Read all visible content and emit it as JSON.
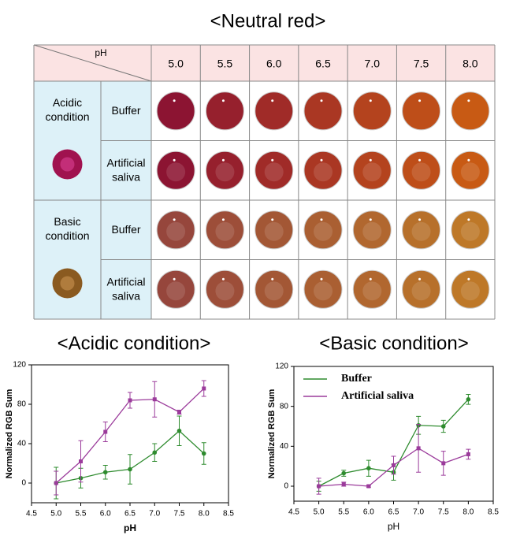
{
  "title": "<Neutral red>",
  "table": {
    "corner": "pH",
    "columns": [
      "5.0",
      "5.5",
      "6.0",
      "6.5",
      "7.0",
      "7.5",
      "8.0"
    ],
    "groups": [
      {
        "label": "Acidic condition",
        "rows": [
          "Buffer",
          "Artificial saliva"
        ]
      },
      {
        "label": "Basic condition",
        "rows": [
          "Buffer",
          "Artificial saliva"
        ]
      }
    ]
  },
  "chart_data": [
    {
      "type": "line",
      "title": "<Acidic condition>",
      "x_label": "pH",
      "y_label": "Normalized RGB Sum",
      "x": [
        5,
        5.5,
        6,
        6.5,
        7,
        7.5,
        8
      ],
      "series": [
        {
          "color": "#2e8b2e",
          "marker": "circle",
          "values": [
            0,
            5,
            11,
            14,
            31,
            53,
            30
          ],
          "errors": [
            16,
            10,
            7,
            15,
            9,
            15,
            11
          ]
        },
        {
          "color": "#9b3b9b",
          "marker": "square",
          "values": [
            0,
            22,
            52,
            84,
            85,
            72,
            96
          ],
          "errors": [
            12,
            21,
            10,
            8,
            18,
            2,
            8
          ]
        }
      ],
      "xlim": [
        4.5,
        8.5
      ],
      "xticks": [
        4.5,
        {
          "value": 5,
          "label": "5.0"
        },
        5.5,
        {
          "value": 6,
          "label": "6.0"
        },
        6.5,
        {
          "value": 7,
          "label": "7.0"
        },
        7.5,
        {
          "value": 8,
          "label": "8.0"
        },
        8.5
      ],
      "ylim": [
        -20,
        120
      ],
      "yticks": [
        0,
        40,
        80,
        120
      ]
    },
    {
      "type": "line",
      "title": "<Basic condition>",
      "x_label": "pH",
      "y_label": "Normalized RGB Sum",
      "x": [
        5,
        5.5,
        6,
        6.5,
        7,
        7.5,
        8
      ],
      "series": [
        {
          "name": "Buffer",
          "color": "#2e8b2e",
          "marker": "circle",
          "values": [
            0,
            13,
            18,
            14,
            61,
            60,
            87
          ],
          "errors": [
            5,
            3,
            8,
            8,
            9,
            6,
            5
          ]
        },
        {
          "name": "Artificial saliva",
          "color": "#9b3b9b",
          "marker": "square",
          "values": [
            0,
            2,
            0,
            21,
            38,
            23,
            32
          ],
          "errors": [
            8,
            2,
            1,
            9,
            24,
            12,
            5
          ]
        }
      ],
      "xlim": [
        4.5,
        8.5
      ],
      "xticks": [
        4.5,
        {
          "value": 5,
          "label": "5.0"
        },
        5.5,
        {
          "value": 6,
          "label": "6.0"
        },
        6.5,
        {
          "value": 7,
          "label": "7.0"
        },
        7.5,
        {
          "value": 8,
          "label": "8.0"
        },
        8.5
      ],
      "ylim": [
        -15,
        120
      ],
      "yticks": [
        0,
        40,
        80,
        120
      ],
      "legend": "upper left"
    }
  ]
}
